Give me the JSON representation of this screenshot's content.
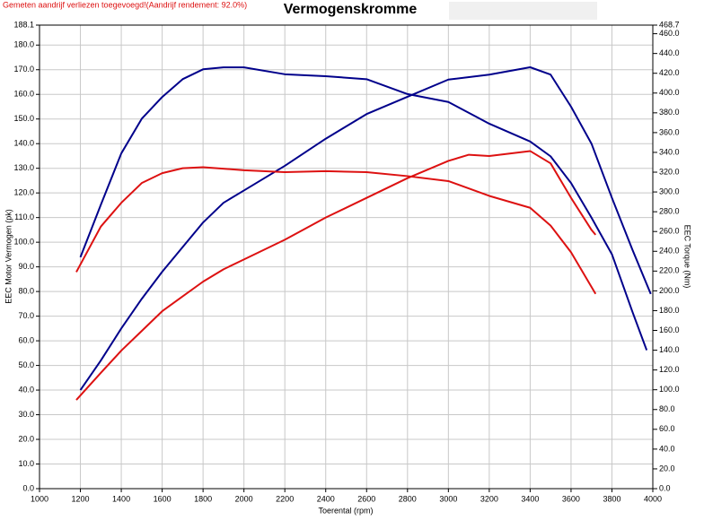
{
  "chart_data": {
    "type": "line",
    "title": "Vermogenskromme",
    "subtitle": "Gemeten aandrijf verliezen toegevoegd!(Aandrijf rendement: 92.0%)",
    "x_label": "Toerental (rpm)",
    "y_label": "EEC Motor Vermogen (pk)",
    "y2_label": "EEC Torque (Nm)",
    "xlim": [
      1000,
      4000
    ],
    "xticks": [
      1000,
      1200,
      1400,
      1600,
      1800,
      2000,
      2200,
      2400,
      2600,
      2800,
      3000,
      3200,
      3400,
      3600,
      3800,
      4000
    ],
    "ylim": [
      0,
      188.1
    ],
    "yticks": [
      {
        "value": 0,
        "label": "0.0"
      },
      {
        "value": 10,
        "label": "10.0"
      },
      {
        "value": 20,
        "label": "20.0"
      },
      {
        "value": 30,
        "label": "30.0"
      },
      {
        "value": 40,
        "label": "40.0"
      },
      {
        "value": 50,
        "label": "50.0"
      },
      {
        "value": 60,
        "label": "60.0"
      },
      {
        "value": 70,
        "label": "70.0"
      },
      {
        "value": 80,
        "label": "80.0"
      },
      {
        "value": 90,
        "label": "90.0"
      },
      {
        "value": 100,
        "label": "100.0"
      },
      {
        "value": 110,
        "label": "110.0"
      },
      {
        "value": 120,
        "label": "120.0"
      },
      {
        "value": 130,
        "label": "130.0"
      },
      {
        "value": 140,
        "label": "140.0"
      },
      {
        "value": 150,
        "label": "150.0"
      },
      {
        "value": 160,
        "label": "160.0"
      },
      {
        "value": 170,
        "label": "170.0"
      },
      {
        "value": 180,
        "label": "180.0"
      },
      188.1
    ],
    "y2lim": [
      0,
      468.7
    ],
    "y2ticks": [
      {
        "value": 0,
        "label": "0.0"
      },
      {
        "value": 20,
        "label": "20.0"
      },
      {
        "value": 40,
        "label": "40.0"
      },
      {
        "value": 60,
        "label": "60.0"
      },
      {
        "value": 80,
        "label": "80.0"
      },
      {
        "value": 100,
        "label": "100.0"
      },
      {
        "value": 120,
        "label": "120.0"
      },
      {
        "value": 140,
        "label": "140.0"
      },
      {
        "value": 160,
        "label": "160.0"
      },
      {
        "value": 180,
        "label": "180.0"
      },
      {
        "value": 200,
        "label": "200.0"
      },
      {
        "value": 220,
        "label": "220.0"
      },
      {
        "value": 240,
        "label": "240.0"
      },
      {
        "value": 260,
        "label": "260.0"
      },
      {
        "value": 280,
        "label": "280.0"
      },
      {
        "value": 300,
        "label": "300.0"
      },
      {
        "value": 320,
        "label": "320.0"
      },
      {
        "value": 340,
        "label": "340.0"
      },
      {
        "value": 360,
        "label": "360.0"
      },
      {
        "value": 380,
        "label": "380.0"
      },
      {
        "value": 400,
        "label": "400.0"
      },
      {
        "value": 420,
        "label": "420.0"
      },
      {
        "value": 440,
        "label": "440.0"
      },
      {
        "value": 460,
        "label": "460.0"
      },
      468.7
    ],
    "grid": true,
    "series": [
      {
        "color": "#00008b",
        "x": [
          1200,
          1300,
          1400,
          1500,
          1600,
          1700,
          1800,
          1900,
          2000,
          2200,
          2400,
          2600,
          2800,
          3000,
          3200,
          3400,
          3500,
          3600,
          3700,
          3800,
          3900,
          3990
        ],
        "values": [
          40,
          52,
          65,
          77,
          88,
          98,
          108,
          116,
          121,
          131,
          142,
          152,
          159,
          166,
          168,
          171,
          168,
          155,
          140,
          118,
          97,
          79
        ]
      },
      {
        "color": "#00008b",
        "axis": "y2",
        "x": [
          1200,
          1300,
          1400,
          1500,
          1600,
          1700,
          1800,
          1900,
          2000,
          2200,
          2400,
          2600,
          2800,
          3000,
          3200,
          3400,
          3500,
          3600,
          3700,
          3800,
          3900,
          3970
        ],
        "values": [
          234,
          287,
          339,
          374,
          396,
          414,
          424,
          426,
          426,
          419,
          417,
          414,
          399,
          391,
          369,
          351,
          336,
          309,
          274,
          237,
          179,
          140
        ]
      },
      {
        "color": "#dd1111",
        "x": [
          1180,
          1300,
          1400,
          1500,
          1600,
          1700,
          1800,
          1900,
          2000,
          2200,
          2400,
          2600,
          2800,
          3000,
          3100,
          3200,
          3300,
          3400,
          3500,
          3600,
          3700,
          3720
        ],
        "values": [
          36,
          47,
          56,
          64,
          72,
          78,
          84,
          89,
          93,
          101,
          110,
          118,
          126,
          133,
          135.5,
          135,
          136,
          137,
          132,
          118,
          105,
          103
        ]
      },
      {
        "color": "#dd1111",
        "axis": "y2",
        "x": [
          1180,
          1300,
          1400,
          1500,
          1600,
          1700,
          1800,
          2000,
          2200,
          2400,
          2600,
          2800,
          3000,
          3200,
          3400,
          3500,
          3600,
          3720
        ],
        "values": [
          219,
          265,
          289,
          309,
          319,
          324,
          325,
          322,
          320,
          321,
          320,
          316,
          311,
          296,
          284,
          266,
          239,
          197
        ]
      }
    ]
  }
}
